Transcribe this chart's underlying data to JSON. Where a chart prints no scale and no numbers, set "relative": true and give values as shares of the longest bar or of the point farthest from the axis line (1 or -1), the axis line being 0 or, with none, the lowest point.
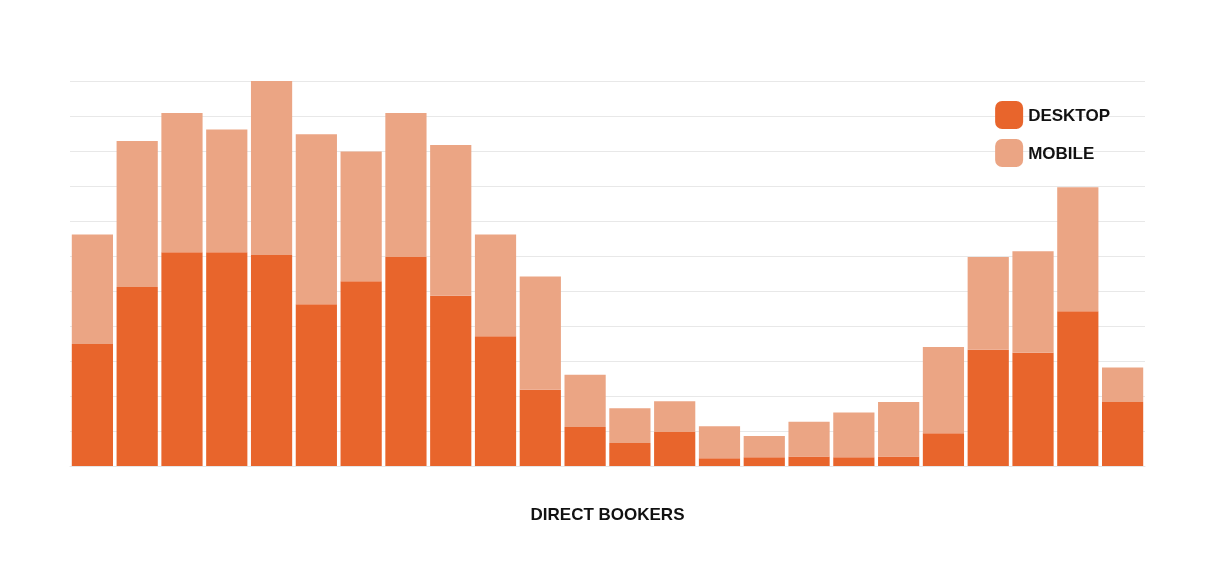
{
  "chart_data": {
    "type": "bar",
    "stacked": true,
    "relative": true,
    "xlabel": "DIRECT BOOKERS",
    "categories": [
      null,
      null,
      null,
      null,
      null,
      null,
      null,
      null,
      null,
      null,
      null,
      null,
      null,
      null,
      null,
      null,
      null,
      null,
      null,
      null,
      null,
      null,
      null,
      null
    ],
    "series": [
      {
        "name": "DESKTOP",
        "color": "#e8652c",
        "values": [
          0.317,
          0.465,
          0.555,
          0.555,
          0.548,
          0.42,
          0.48,
          0.543,
          0.442,
          0.337,
          0.198,
          0.101,
          0.06,
          0.088,
          0.02,
          0.023,
          0.025,
          0.023,
          0.025,
          0.085,
          0.302,
          0.294,
          0.402,
          0.166
        ]
      },
      {
        "name": "MOBILE",
        "color": "#eba584",
        "values": [
          0.284,
          0.379,
          0.362,
          0.319,
          0.452,
          0.442,
          0.337,
          0.374,
          0.392,
          0.264,
          0.294,
          0.136,
          0.09,
          0.08,
          0.083,
          0.055,
          0.09,
          0.116,
          0.141,
          0.224,
          0.241,
          0.264,
          0.322,
          0.09
        ]
      }
    ],
    "grid": "y",
    "legend": "top right"
  }
}
